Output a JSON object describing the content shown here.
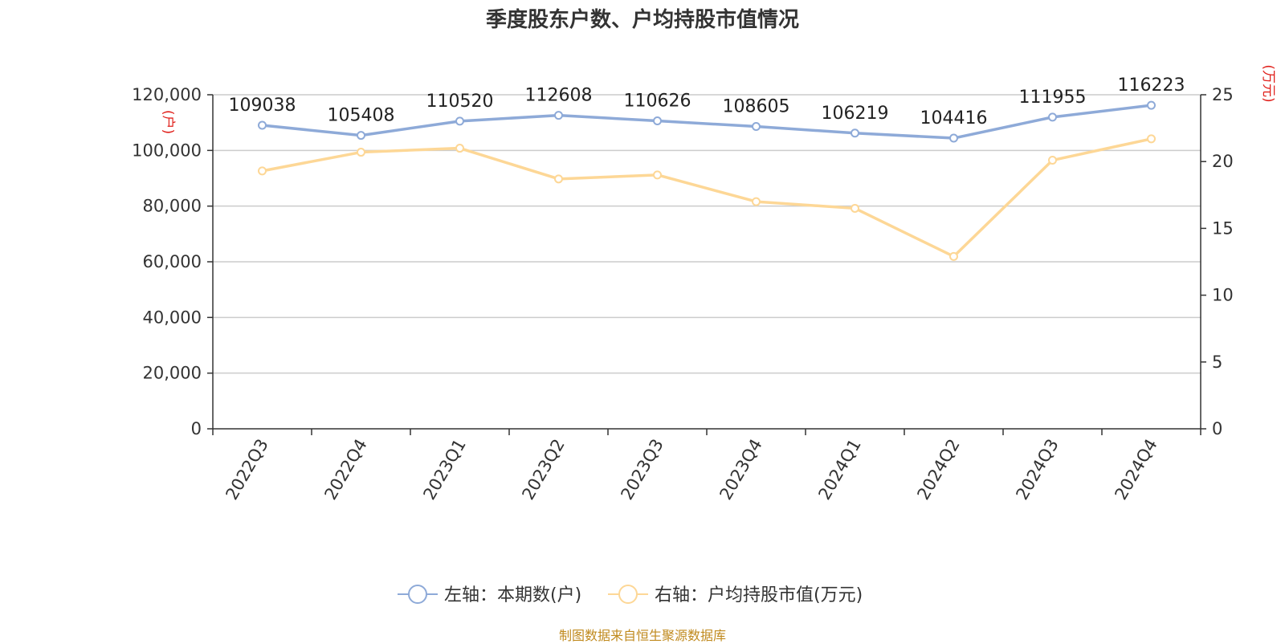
{
  "title": "季度股东户数、户均持股市值情况",
  "source": "制图数据来自恒生聚源数据库",
  "colors": {
    "series1": "#8eaad8",
    "series2": "#fdd796",
    "unit": "#e0201b",
    "grid": "#cccccc"
  },
  "chart_data": {
    "type": "line",
    "title": "季度股东户数、户均持股市值情况",
    "categories": [
      "2022Q3",
      "2022Q4",
      "2023Q1",
      "2023Q2",
      "2023Q3",
      "2023Q4",
      "2024Q1",
      "2024Q2",
      "2024Q3",
      "2024Q4"
    ],
    "left_axis": {
      "unit": "(户)",
      "range": [
        0,
        120000
      ],
      "ticks": [
        "0",
        "20,000",
        "40,000",
        "60,000",
        "80,000",
        "100,000",
        "120,000"
      ]
    },
    "right_axis": {
      "unit": "(万元)",
      "range": [
        0,
        25
      ],
      "ticks": [
        "0",
        "5",
        "10",
        "15",
        "20",
        "25"
      ]
    },
    "grid": true,
    "legend_position": "bottom-center",
    "series": [
      {
        "name": "左轴：本期数(户)",
        "axis": "left",
        "values": [
          109038,
          105408,
          110520,
          112608,
          110626,
          108605,
          106219,
          104416,
          111955,
          116223
        ],
        "labels": [
          "109038",
          "105408",
          "110520",
          "112608",
          "110626",
          "108605",
          "106219",
          "104416",
          "111955",
          "116223"
        ]
      },
      {
        "name": "右轴：户均持股市值(万元)",
        "axis": "right",
        "values": [
          19.3,
          20.7,
          21.0,
          18.7,
          19.0,
          17.0,
          16.5,
          12.9,
          20.1,
          21.7
        ]
      }
    ]
  }
}
